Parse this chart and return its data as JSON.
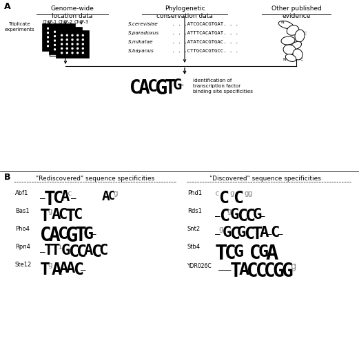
{
  "panel_a_label": "A",
  "panel_b_label": "B",
  "title_genome": "Genome-wide\nlocation data",
  "title_phylo": "Phylogenetic\nconservation data",
  "title_other": "Other published\nevidence",
  "chip_labels": [
    "ChIP-1",
    "ChIP-2",
    "ChIP-3"
  ],
  "triplicate_label": "Triplicate\nexperiments",
  "sequences": [
    [
      "S.cerevisiae",
      "  . . .ATCGCACGTGAT. . ."
    ],
    [
      "S.paradoxus",
      "  . . .ATTTCACATGAT. . ."
    ],
    [
      "S.mikatae",
      "  . . .ATATCACGTGAC. . ."
    ],
    [
      "S.bayanus",
      "  . . .CTTGCACGTGCC. . ."
    ]
  ],
  "identification_text": "Identification of\ntranscription factor\nbinding site specificities",
  "rediscovered_title": "\"Rediscovered\" sequence specificities",
  "discovered_title": "\"Discovered\" sequence specificities",
  "bg_color": "#ffffff"
}
